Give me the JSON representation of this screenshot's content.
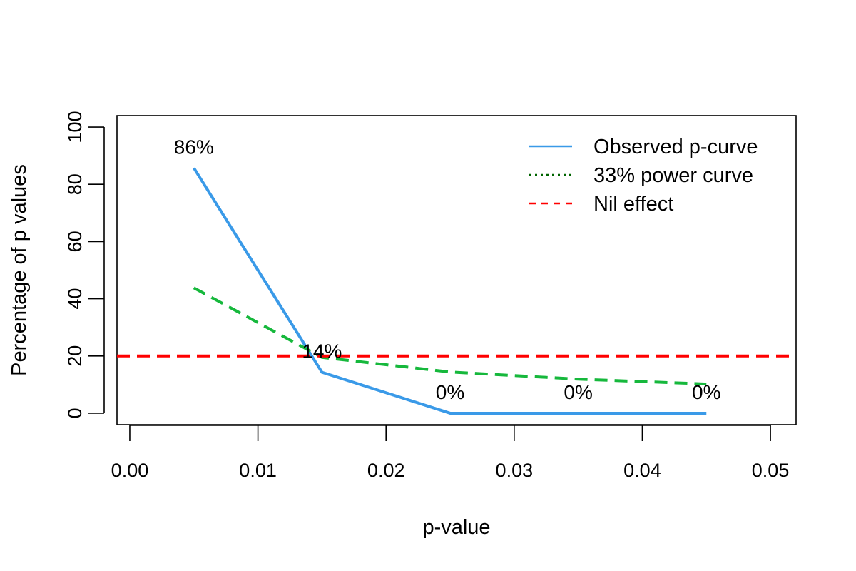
{
  "chart_data": {
    "type": "line",
    "title": "",
    "xlabel": "p-value",
    "ylabel": "Percentage of p values",
    "xlim": [
      -0.001,
      0.052
    ],
    "ylim": [
      -4,
      104
    ],
    "xticks": [
      0.0,
      0.01,
      0.02,
      0.03,
      0.04,
      0.05
    ],
    "xtick_labels": [
      "0.00",
      "0.01",
      "0.02",
      "0.03",
      "0.04",
      "0.05"
    ],
    "yticks": [
      0,
      20,
      40,
      60,
      80,
      100
    ],
    "ytick_labels": [
      "0",
      "20",
      "40",
      "60",
      "80",
      "100"
    ],
    "x": [
      0.005,
      0.015,
      0.025,
      0.035,
      0.045
    ],
    "series": [
      {
        "name": "Observed p-curve",
        "values": [
          85.7,
          14.3,
          0,
          0,
          0
        ],
        "color": "#3a9ae8",
        "style": "solid"
      },
      {
        "name": "33% power curve",
        "values": [
          43.8,
          19.5,
          14.4,
          11.9,
          10.2
        ],
        "color": "#16b83c",
        "style": "dashed",
        "legend_color": "#006400",
        "legend_style": "dotted"
      },
      {
        "name": "Nil effect",
        "values": [
          20,
          20,
          20,
          20,
          20
        ],
        "color": "#ff0000",
        "style": "dashed",
        "horizontal_line": true
      }
    ],
    "data_labels": [
      {
        "x": 0.005,
        "y": 85.7,
        "text": "86%"
      },
      {
        "x": 0.015,
        "y": 14.3,
        "text": "14%"
      },
      {
        "x": 0.025,
        "y": 0,
        "text": "0%"
      },
      {
        "x": 0.035,
        "y": 0,
        "text": "0%"
      },
      {
        "x": 0.045,
        "y": 0,
        "text": "0%"
      }
    ],
    "legend": {
      "position": "top-right",
      "entries": [
        "Observed p-curve",
        "33% power curve",
        "Nil effect"
      ]
    },
    "grid": false
  }
}
